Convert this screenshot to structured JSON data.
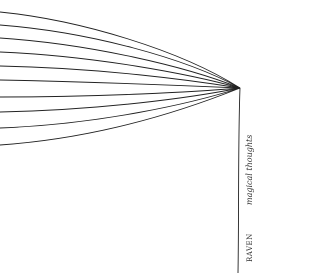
{
  "caption": "magical thoughts",
  "signature": "RAVEN"
}
